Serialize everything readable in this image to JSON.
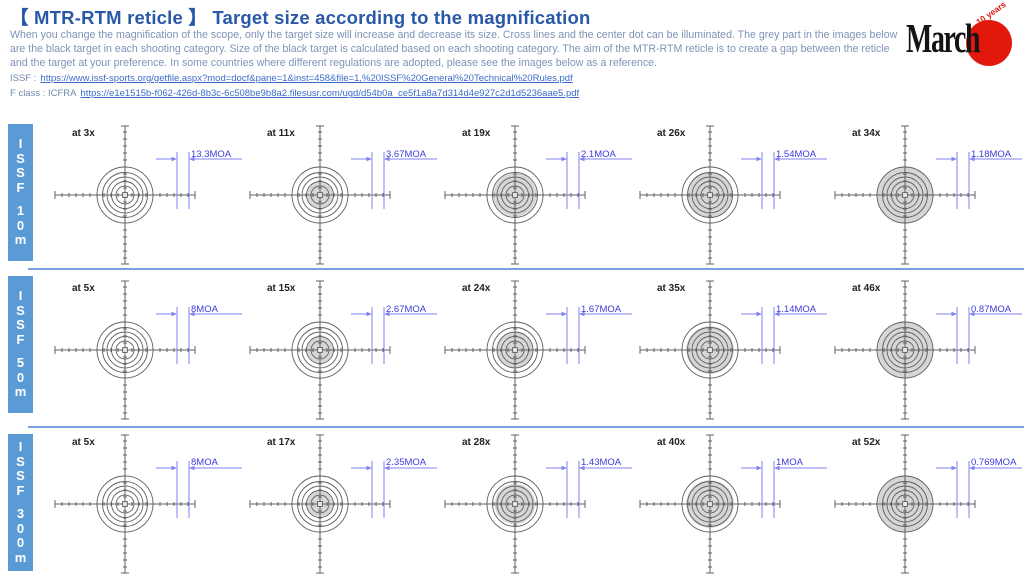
{
  "header": {
    "title": "【 MTR-RTM reticle 】  Target size according to the magnification",
    "description": "When you change the magnification of the scope, only the target size will increase and decrease its size. Cross lines and the center dot can be illuminated. The grey part in the images below are the black target in each shooting category. Size of the black target is calculated based on each shooting category. The aim of the MTR-RTM reticle is to create a gap between the reticle and the target at your preference. In some countries where different regulations are adopted, please see the images below as a reference.",
    "links": [
      {
        "label": "ISSF :",
        "url": "https://www.issf-sports.org/getfile.aspx?mod=docf&pane=1&inst=458&file=1,%20ISSF%20General%20Technical%20Rules.pdf"
      },
      {
        "label": "F class : ICFRA",
        "url": "https://e1e1515b-f062-426d-8b3c-6c508be9b8a2.filesusr.com/ugd/d54b0a_ce5f1a8a7d314d4e927c2d1d5236aae5.pdf"
      }
    ],
    "logo": {
      "text": "March",
      "badge": "10 years"
    }
  },
  "colors": {
    "title": "#2a58a8",
    "body_text": "#7e93b8",
    "link": "#3b6cc9",
    "sidebar": "#5b9bd5",
    "separator": "#7ba0dc",
    "annotation": "#8282f0",
    "annotation_text": "#3c3cd9",
    "reticle_line": "#606060",
    "target_grey": "#d6d6d6",
    "logo_red": "#e2180d"
  },
  "rows": [
    {
      "category": "ISSF 10m",
      "label_chars": [
        "I",
        "S",
        "S",
        "F",
        "",
        "1",
        "0",
        "m"
      ],
      "cells": [
        {
          "magnification": "at 3x",
          "moa": "13.3MOA",
          "target_scale": 0.11
        },
        {
          "magnification": "at 11x",
          "moa": "3.67MOA",
          "target_scale": 0.46
        },
        {
          "magnification": "at 19x",
          "moa": "2.1MOA",
          "target_scale": 0.77
        },
        {
          "magnification": "at 26x",
          "moa": "1.54MOA",
          "target_scale": 0.82
        },
        {
          "magnification": "at 34x",
          "moa": "1.18MOA",
          "target_scale": 1.0
        }
      ]
    },
    {
      "category": "ISSF 50m",
      "label_chars": [
        "I",
        "S",
        "S",
        "F",
        "",
        "5",
        "0",
        "m"
      ],
      "cells": [
        {
          "magnification": "at 5x",
          "moa": "8MOA",
          "target_scale": 0.11
        },
        {
          "magnification": "at 15x",
          "moa": "2.67MOA",
          "target_scale": 0.46
        },
        {
          "magnification": "at 24x",
          "moa": "1.67MOA",
          "target_scale": 0.66
        },
        {
          "magnification": "at 35x",
          "moa": "1.14MOA",
          "target_scale": 0.85
        },
        {
          "magnification": "at 46x",
          "moa": "0.87MOA",
          "target_scale": 1.0
        }
      ]
    },
    {
      "category": "ISSF 300m",
      "label_chars": [
        "I",
        "S",
        "S",
        "F",
        "",
        "3",
        "0",
        "0",
        "m"
      ],
      "cells": [
        {
          "magnification": "at 5x",
          "moa": "8MOA",
          "target_scale": 0.11
        },
        {
          "magnification": "at 17x",
          "moa": "2.35MOA",
          "target_scale": 0.46
        },
        {
          "magnification": "at 28x",
          "moa": "1.43MOA",
          "target_scale": 0.72
        },
        {
          "magnification": "at 40x",
          "moa": "1MOA",
          "target_scale": 0.85
        },
        {
          "magnification": "at 52x",
          "moa": "0.769MOA",
          "target_scale": 1.0
        }
      ]
    }
  ]
}
